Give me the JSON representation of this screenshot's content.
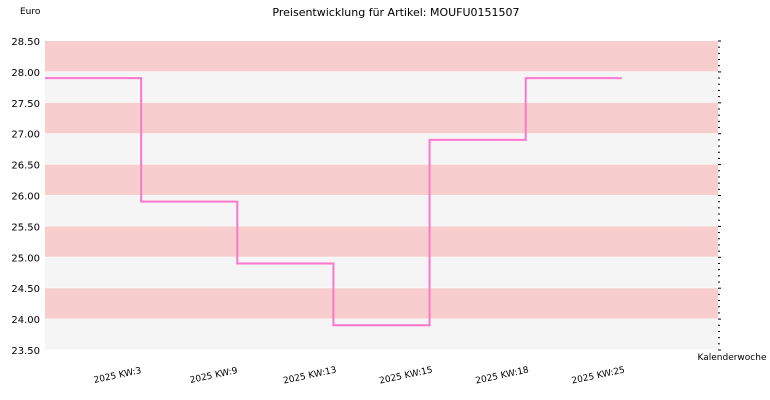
{
  "chart_data": {
    "type": "line",
    "title": "Preisentwicklung für Artikel: MOUFU0151507",
    "ylabel": "Euro",
    "xlabel": "Kalenderwoche",
    "ylim": [
      23.5,
      28.5
    ],
    "yticks": [
      "23.50",
      "24.00",
      "24.50",
      "25.00",
      "25.50",
      "26.00",
      "26.50",
      "27.00",
      "27.50",
      "28.00",
      "28.50"
    ],
    "categories": [
      "2025 KW:3",
      "2025 KW:9",
      "2025 KW:13",
      "2025 KW:15",
      "2025 KW:18",
      "2025 KW:25"
    ],
    "step": true,
    "series": [
      {
        "values": [
          27.9,
          25.9,
          24.9,
          23.9,
          26.9,
          27.9
        ]
      }
    ],
    "grid": "alternating horizontal bands",
    "colors": {
      "line": "#ff77cc",
      "band_dark": "#f7cdcd",
      "band_light": "#f5f5f5",
      "grid": "#ffffff"
    }
  }
}
